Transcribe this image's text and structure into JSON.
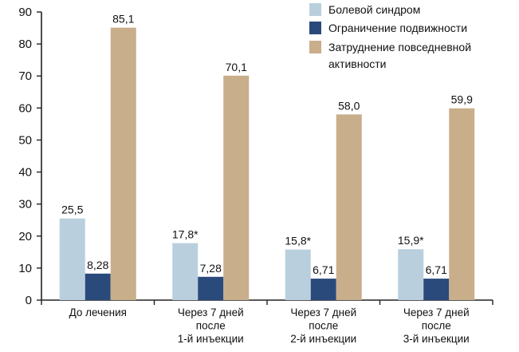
{
  "chart_data": {
    "type": "bar",
    "categories": [
      [
        "До лечения"
      ],
      [
        "Через 7 дней",
        "после",
        "1-й инъекции"
      ],
      [
        "Через 7 дней",
        "после",
        "2-й инъекции"
      ],
      [
        "Через 7 дней",
        "после",
        "3-й инъекции"
      ]
    ],
    "series": [
      {
        "name": "Болевой синдром",
        "color": "#b9cfdd",
        "values": [
          25.5,
          17.8,
          15.8,
          15.9
        ],
        "labels": [
          "25,5",
          "17,8*",
          "15,8*",
          "15,9*"
        ]
      },
      {
        "name": "Ограничение подвижности",
        "color": "#2b4a7c",
        "values": [
          8.28,
          7.28,
          6.71,
          6.71
        ],
        "labels": [
          "8,28",
          "7,28",
          "6,71",
          "6,71"
        ]
      },
      {
        "name": "Затруднение повседневной активности",
        "legend_lines": [
          "Затруднение повседневной",
          "активности"
        ],
        "color": "#c9ae8b",
        "values": [
          85.1,
          70.1,
          58.0,
          59.9
        ],
        "labels": [
          "85,1",
          "70,1",
          "58,0",
          "59,9"
        ]
      }
    ],
    "yticks": [
      0,
      10,
      20,
      30,
      40,
      50,
      60,
      70,
      80,
      90
    ],
    "ylim": [
      0,
      90
    ],
    "legend": "top-right",
    "grid": false
  }
}
